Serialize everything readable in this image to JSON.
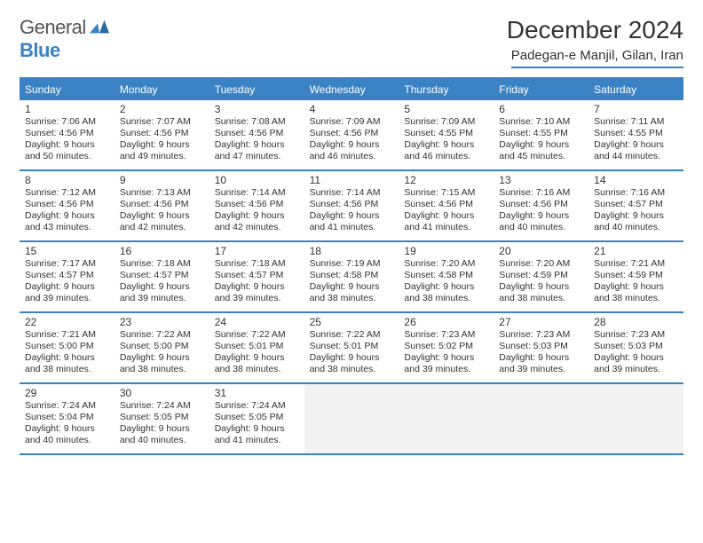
{
  "brand": {
    "name1": "General",
    "name2": "Blue"
  },
  "title": "December 2024",
  "location": "Padegan-e Manjil, Gilan, Iran",
  "colors": {
    "accent": "#3b82c4",
    "bg": "#ffffff",
    "text": "#333333",
    "empty": "#f2f2f2"
  },
  "weekdays": [
    "Sunday",
    "Monday",
    "Tuesday",
    "Wednesday",
    "Thursday",
    "Friday",
    "Saturday"
  ],
  "weeks": [
    [
      {
        "n": "1",
        "sr": "7:06 AM",
        "ss": "4:56 PM",
        "dl": "9 hours and 50 minutes."
      },
      {
        "n": "2",
        "sr": "7:07 AM",
        "ss": "4:56 PM",
        "dl": "9 hours and 49 minutes."
      },
      {
        "n": "3",
        "sr": "7:08 AM",
        "ss": "4:56 PM",
        "dl": "9 hours and 47 minutes."
      },
      {
        "n": "4",
        "sr": "7:09 AM",
        "ss": "4:56 PM",
        "dl": "9 hours and 46 minutes."
      },
      {
        "n": "5",
        "sr": "7:09 AM",
        "ss": "4:55 PM",
        "dl": "9 hours and 46 minutes."
      },
      {
        "n": "6",
        "sr": "7:10 AM",
        "ss": "4:55 PM",
        "dl": "9 hours and 45 minutes."
      },
      {
        "n": "7",
        "sr": "7:11 AM",
        "ss": "4:55 PM",
        "dl": "9 hours and 44 minutes."
      }
    ],
    [
      {
        "n": "8",
        "sr": "7:12 AM",
        "ss": "4:56 PM",
        "dl": "9 hours and 43 minutes."
      },
      {
        "n": "9",
        "sr": "7:13 AM",
        "ss": "4:56 PM",
        "dl": "9 hours and 42 minutes."
      },
      {
        "n": "10",
        "sr": "7:14 AM",
        "ss": "4:56 PM",
        "dl": "9 hours and 42 minutes."
      },
      {
        "n": "11",
        "sr": "7:14 AM",
        "ss": "4:56 PM",
        "dl": "9 hours and 41 minutes."
      },
      {
        "n": "12",
        "sr": "7:15 AM",
        "ss": "4:56 PM",
        "dl": "9 hours and 41 minutes."
      },
      {
        "n": "13",
        "sr": "7:16 AM",
        "ss": "4:56 PM",
        "dl": "9 hours and 40 minutes."
      },
      {
        "n": "14",
        "sr": "7:16 AM",
        "ss": "4:57 PM",
        "dl": "9 hours and 40 minutes."
      }
    ],
    [
      {
        "n": "15",
        "sr": "7:17 AM",
        "ss": "4:57 PM",
        "dl": "9 hours and 39 minutes."
      },
      {
        "n": "16",
        "sr": "7:18 AM",
        "ss": "4:57 PM",
        "dl": "9 hours and 39 minutes."
      },
      {
        "n": "17",
        "sr": "7:18 AM",
        "ss": "4:57 PM",
        "dl": "9 hours and 39 minutes."
      },
      {
        "n": "18",
        "sr": "7:19 AM",
        "ss": "4:58 PM",
        "dl": "9 hours and 38 minutes."
      },
      {
        "n": "19",
        "sr": "7:20 AM",
        "ss": "4:58 PM",
        "dl": "9 hours and 38 minutes."
      },
      {
        "n": "20",
        "sr": "7:20 AM",
        "ss": "4:59 PM",
        "dl": "9 hours and 38 minutes."
      },
      {
        "n": "21",
        "sr": "7:21 AM",
        "ss": "4:59 PM",
        "dl": "9 hours and 38 minutes."
      }
    ],
    [
      {
        "n": "22",
        "sr": "7:21 AM",
        "ss": "5:00 PM",
        "dl": "9 hours and 38 minutes."
      },
      {
        "n": "23",
        "sr": "7:22 AM",
        "ss": "5:00 PM",
        "dl": "9 hours and 38 minutes."
      },
      {
        "n": "24",
        "sr": "7:22 AM",
        "ss": "5:01 PM",
        "dl": "9 hours and 38 minutes."
      },
      {
        "n": "25",
        "sr": "7:22 AM",
        "ss": "5:01 PM",
        "dl": "9 hours and 38 minutes."
      },
      {
        "n": "26",
        "sr": "7:23 AM",
        "ss": "5:02 PM",
        "dl": "9 hours and 39 minutes."
      },
      {
        "n": "27",
        "sr": "7:23 AM",
        "ss": "5:03 PM",
        "dl": "9 hours and 39 minutes."
      },
      {
        "n": "28",
        "sr": "7:23 AM",
        "ss": "5:03 PM",
        "dl": "9 hours and 39 minutes."
      }
    ],
    [
      {
        "n": "29",
        "sr": "7:24 AM",
        "ss": "5:04 PM",
        "dl": "9 hours and 40 minutes."
      },
      {
        "n": "30",
        "sr": "7:24 AM",
        "ss": "5:05 PM",
        "dl": "9 hours and 40 minutes."
      },
      {
        "n": "31",
        "sr": "7:24 AM",
        "ss": "5:05 PM",
        "dl": "9 hours and 41 minutes."
      },
      null,
      null,
      null,
      null
    ]
  ],
  "labels": {
    "sunrise": "Sunrise:",
    "sunset": "Sunset:",
    "daylight": "Daylight:"
  }
}
